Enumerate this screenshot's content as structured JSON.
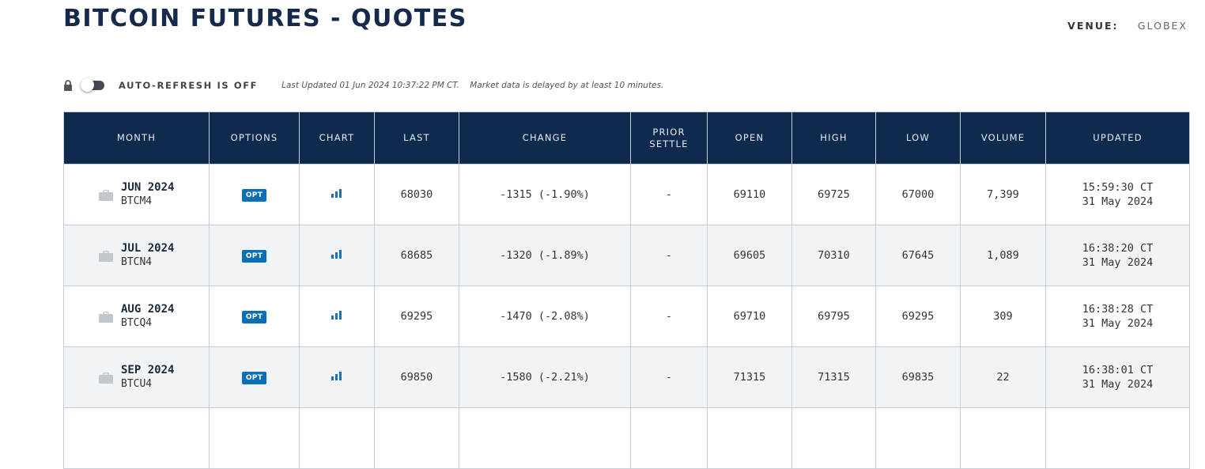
{
  "header": {
    "title": "BITCOIN FUTURES - QUOTES",
    "venue_label": "VENUE:",
    "venue_value": "GLOBEX"
  },
  "refresh": {
    "label": "AUTO-REFRESH IS OFF",
    "last_updated": "Last Updated 01 Jun 2024 10:37:22 PM CT.",
    "delay_note": "Market data is delayed by at least 10 minutes."
  },
  "table": {
    "columns": {
      "month": "MONTH",
      "options": "OPTIONS",
      "chart": "CHART",
      "last": "LAST",
      "change": "CHANGE",
      "prior_settle_1": "PRIOR",
      "prior_settle_2": "SETTLE",
      "open": "OPEN",
      "high": "HIGH",
      "low": "LOW",
      "volume": "VOLUME",
      "updated": "UPDATED"
    },
    "rows": [
      {
        "month": "JUN 2024",
        "code": "BTCM4",
        "opt": "OPT",
        "last": "68030",
        "change": "-1315 (-1.90%)",
        "prior_settle": "-",
        "open": "69110",
        "high": "69725",
        "low": "67000",
        "volume": "7,399",
        "updated_time": "15:59:30 CT",
        "updated_date": "31 May 2024"
      },
      {
        "month": "JUL 2024",
        "code": "BTCN4",
        "opt": "OPT",
        "last": "68685",
        "change": "-1320 (-1.89%)",
        "prior_settle": "-",
        "open": "69605",
        "high": "70310",
        "low": "67645",
        "volume": "1,089",
        "updated_time": "16:38:20 CT",
        "updated_date": "31 May 2024"
      },
      {
        "month": "AUG 2024",
        "code": "BTCQ4",
        "opt": "OPT",
        "last": "69295",
        "change": "-1470 (-2.08%)",
        "prior_settle": "-",
        "open": "69710",
        "high": "69795",
        "low": "69295",
        "volume": "309",
        "updated_time": "16:38:28 CT",
        "updated_date": "31 May 2024"
      },
      {
        "month": "SEP 2024",
        "code": "BTCU4",
        "opt": "OPT",
        "last": "69850",
        "change": "-1580 (-2.21%)",
        "prior_settle": "-",
        "open": "71315",
        "high": "71315",
        "low": "69835",
        "volume": "22",
        "updated_time": "16:38:01 CT",
        "updated_date": "31 May 2024"
      }
    ]
  },
  "colors": {
    "header_bg": "#0f2a4f",
    "negative": "#e02424",
    "opt_badge": "#0b6fb7"
  },
  "icons": {
    "lock": "lock-icon",
    "briefcase": "briefcase-icon",
    "chart": "bar-chart-icon"
  }
}
